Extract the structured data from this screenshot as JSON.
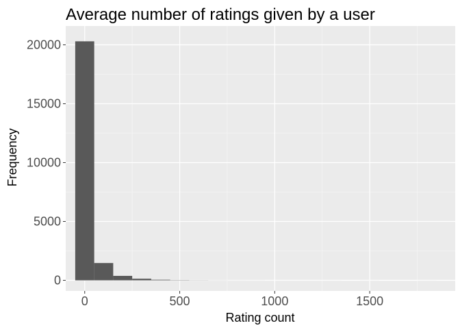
{
  "chart_data": {
    "type": "histogram",
    "title": "Average number of ratings given by a user",
    "xlabel": "Rating count",
    "ylabel": "Frequency",
    "xlim": [
      -100,
      1950
    ],
    "ylim": [
      -900,
      21600
    ],
    "x_ticks": [
      0,
      500,
      1000,
      1500
    ],
    "y_ticks": [
      0,
      5000,
      10000,
      15000,
      20000
    ],
    "x_tick_labels": [
      "0",
      "500",
      "1000",
      "1500"
    ],
    "y_tick_labels": [
      "0",
      "5000",
      "10000",
      "15000",
      "20000"
    ],
    "bin_width": 100,
    "bins": [
      {
        "x0": -50,
        "x1": 50,
        "count": 20300
      },
      {
        "x0": 50,
        "x1": 150,
        "count": 1470
      },
      {
        "x0": 150,
        "x1": 250,
        "count": 380
      },
      {
        "x0": 250,
        "x1": 350,
        "count": 140
      },
      {
        "x0": 350,
        "x1": 450,
        "count": 50
      },
      {
        "x0": 450,
        "x1": 550,
        "count": 20
      },
      {
        "x0": 550,
        "x1": 650,
        "count": 10
      },
      {
        "x0": 650,
        "x1": 750,
        "count": 5
      },
      {
        "x0": 750,
        "x1": 850,
        "count": 3
      },
      {
        "x0": 850,
        "x1": 950,
        "count": 2
      },
      {
        "x0": 950,
        "x1": 1050,
        "count": 1
      },
      {
        "x0": 1050,
        "x1": 1150,
        "count": 1
      },
      {
        "x0": 1150,
        "x1": 1250,
        "count": 1
      },
      {
        "x0": 1250,
        "x1": 1350,
        "count": 1
      },
      {
        "x0": 1350,
        "x1": 1450,
        "count": 0
      },
      {
        "x0": 1450,
        "x1": 1550,
        "count": 1
      },
      {
        "x0": 1550,
        "x1": 1650,
        "count": 0
      },
      {
        "x0": 1650,
        "x1": 1750,
        "count": 0
      },
      {
        "x0": 1750,
        "x1": 1850,
        "count": 1
      }
    ],
    "grid": true,
    "colors": {
      "panel_background": "#EBEBEB",
      "grid_major": "#FFFFFF",
      "grid_minor": "#F5F5F5",
      "bar_fill": "#595959",
      "tick_label": "#4D4D4D",
      "axis_title": "#000000",
      "title": "#000000",
      "tick_mark": "#333333"
    }
  }
}
